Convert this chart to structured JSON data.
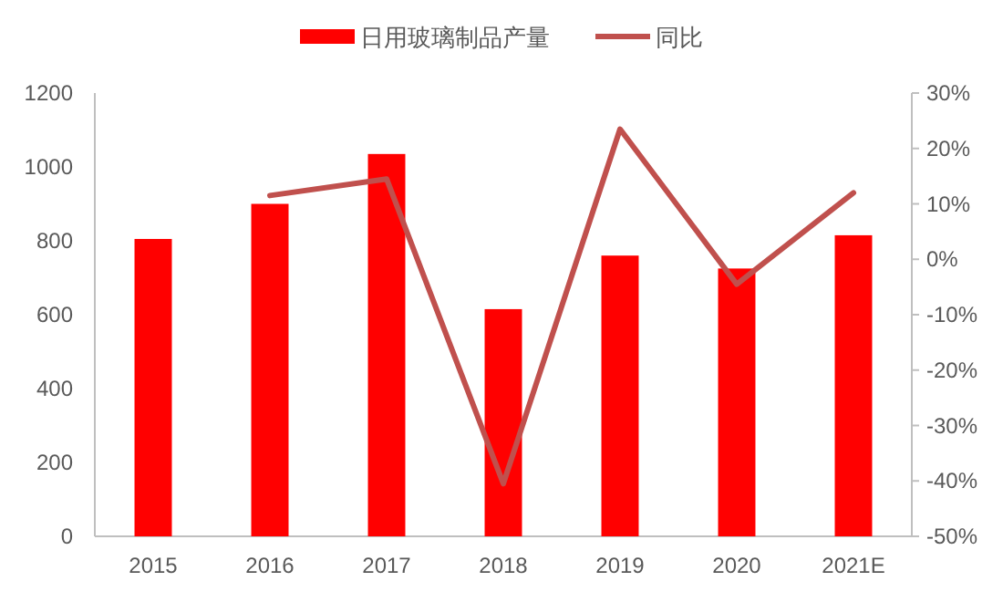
{
  "chart_data": {
    "type": "bar",
    "categories": [
      "2015",
      "2016",
      "2017",
      "2018",
      "2019",
      "2020",
      "2021E"
    ],
    "series": [
      {
        "name": "日用玻璃制品产量",
        "color": "#ff0000",
        "values": [
          805,
          900,
          1035,
          615,
          760,
          725,
          815
        ]
      },
      {
        "name": "同比",
        "type": "line",
        "axis": "y2",
        "color": "#c0504d",
        "values": [
          null,
          11.5,
          14.5,
          -40.5,
          23.5,
          -4.5,
          12
        ]
      }
    ],
    "ylim": [
      0,
      1200
    ],
    "yticks": [
      0,
      200,
      400,
      600,
      800,
      1000,
      1200
    ],
    "y2lim": [
      -50,
      30
    ],
    "y2ticks": [
      {
        "value": -50,
        "label": "-50%"
      },
      {
        "value": -40,
        "label": "-40%"
      },
      {
        "value": -30,
        "label": "-30%"
      },
      {
        "value": -20,
        "label": "-20%"
      },
      {
        "value": -10,
        "label": "-10%"
      },
      {
        "value": 0,
        "label": "0%"
      },
      {
        "value": 10,
        "label": "10%"
      },
      {
        "value": 20,
        "label": "20%"
      },
      {
        "value": 30,
        "label": "30%"
      }
    ],
    "legend": "top",
    "grid": false
  }
}
